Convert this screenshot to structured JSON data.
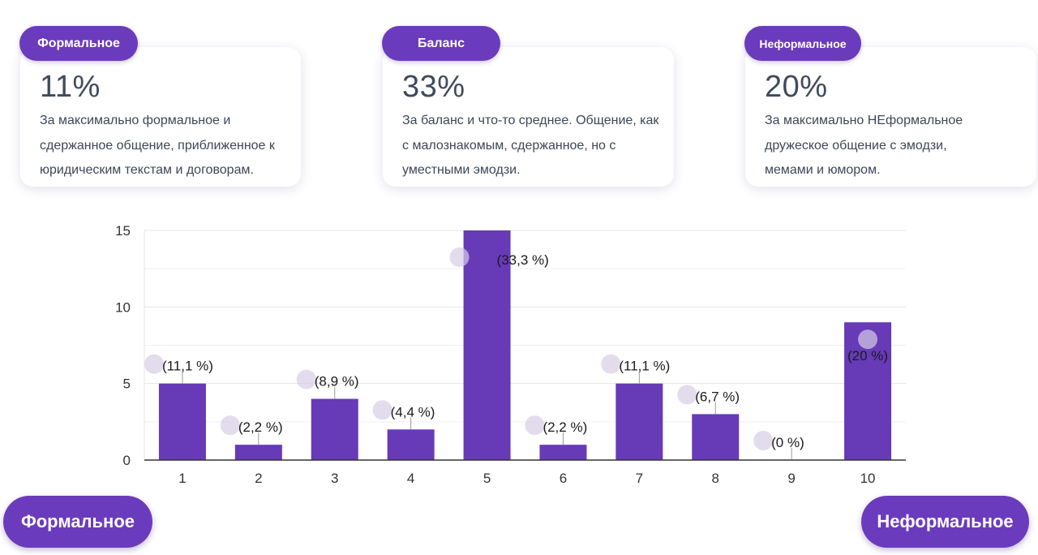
{
  "cards": [
    {
      "tag": "Формальное",
      "percent": "11%",
      "description": "За максимально формальное и сдержанное общение, приближенное к юридическим текстам и договорам."
    },
    {
      "tag": "Баланс",
      "percent": "33%",
      "description": "За баланс и что-то среднее. Общение, как с малознакомым, сдержанное, но с уместными эмодзи."
    },
    {
      "tag": "Неформальное",
      "percent": "20%",
      "description": "За максимально НЕформальное дружеское общение с эмодзи, мемами и юмором."
    }
  ],
  "scale_ends": {
    "left": "Формальное",
    "right": "Неформальное"
  },
  "colors": {
    "accent": "#6b3bbd",
    "bar": "#673ab7",
    "text": "#3f4b5c"
  },
  "chart_data": {
    "type": "bar",
    "categories": [
      "1",
      "2",
      "3",
      "4",
      "5",
      "6",
      "7",
      "8",
      "9",
      "10"
    ],
    "values": [
      5,
      1,
      4,
      2,
      15,
      1,
      5,
      3,
      0,
      9
    ],
    "data_labels": [
      "(11,1 %)",
      "(2,2 %)",
      "(8,9 %)",
      "(4,4 %)",
      "(33,3 %)",
      "(2,2 %)",
      "(11,1 %)",
      "(6,7 %)",
      "(0 %)",
      "(20 %)"
    ],
    "ylim": [
      0,
      15
    ],
    "yticks": [
      "0",
      "5",
      "10",
      "15"
    ],
    "grid": true
  }
}
